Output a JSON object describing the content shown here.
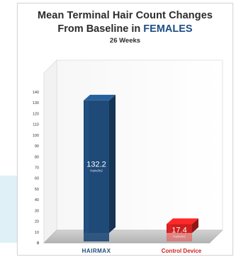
{
  "chart_data": {
    "type": "bar",
    "title_line1": "Mean Terminal Hair Count Changes",
    "title_line2_prefix": "From Baseline in ",
    "title_line2_highlight": "FEMALES",
    "subtitle": "26 Weeks",
    "categories": [
      "HAIRMAX",
      "Control Device"
    ],
    "values": [
      132.2,
      17.4
    ],
    "value_labels": [
      "132.2",
      "17.4"
    ],
    "unit_label": "Hairs/in2",
    "ylim": [
      0,
      140
    ],
    "yticks": [
      0,
      10,
      20,
      30,
      40,
      50,
      60,
      70,
      80,
      90,
      100,
      110,
      120,
      130,
      140
    ],
    "bar_colors": [
      "#1f4a78",
      "#cf1f1f"
    ],
    "category_label_colors": [
      "#1f4a78",
      "#d11f1f"
    ],
    "grid": false
  },
  "colors": {
    "title": "#2b2b2b",
    "title_highlight": "#1d4e84"
  }
}
